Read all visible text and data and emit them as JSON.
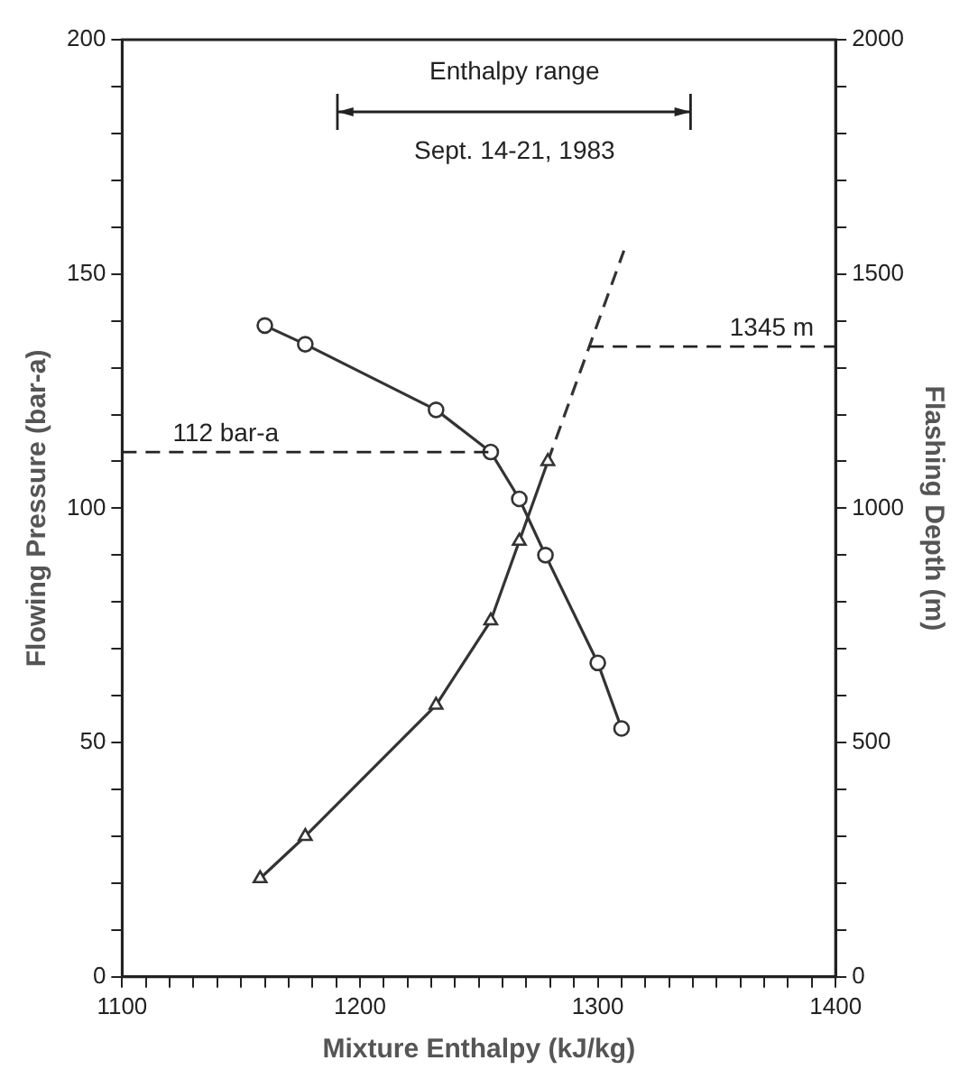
{
  "chart_data": {
    "type": "line",
    "xlabel": "Mixture Enthalpy (kJ/kg)",
    "ylabel": "Flowing Pressure (bar-a)",
    "y2label": "Flashing Depth (m)",
    "xlim": [
      1100,
      1400
    ],
    "xticks": [
      1100,
      {
        "value": 1110,
        "label": null
      },
      {
        "value": 1120,
        "label": null
      },
      {
        "value": 1130,
        "label": null
      },
      {
        "value": 1140,
        "label": null
      },
      {
        "value": 1150,
        "label": null
      },
      {
        "value": 1160,
        "label": null
      },
      {
        "value": 1170,
        "label": null
      },
      {
        "value": 1180,
        "label": null
      },
      {
        "value": 1190,
        "label": null
      },
      1200,
      {
        "value": 1210,
        "label": null
      },
      {
        "value": 1220,
        "label": null
      },
      {
        "value": 1230,
        "label": null
      },
      {
        "value": 1240,
        "label": null
      },
      {
        "value": 1250,
        "label": null
      },
      {
        "value": 1260,
        "label": null
      },
      {
        "value": 1270,
        "label": null
      },
      {
        "value": 1280,
        "label": null
      },
      {
        "value": 1290,
        "label": null
      },
      1300,
      {
        "value": 1310,
        "label": null
      },
      {
        "value": 1320,
        "label": null
      },
      {
        "value": 1330,
        "label": null
      },
      {
        "value": 1340,
        "label": null
      },
      {
        "value": 1350,
        "label": null
      },
      {
        "value": 1360,
        "label": null
      },
      {
        "value": 1370,
        "label": null
      },
      {
        "value": 1380,
        "label": null
      },
      {
        "value": 1390,
        "label": null
      },
      1400
    ],
    "ylim": [
      0,
      200
    ],
    "yticks": [
      0,
      {
        "value": 10,
        "label": null
      },
      {
        "value": 20,
        "label": null
      },
      {
        "value": 30,
        "label": null
      },
      {
        "value": 40,
        "label": null
      },
      50,
      {
        "value": 60,
        "label": null
      },
      {
        "value": 70,
        "label": null
      },
      {
        "value": 80,
        "label": null
      },
      {
        "value": 90,
        "label": null
      },
      100,
      {
        "value": 110,
        "label": null
      },
      {
        "value": 120,
        "label": null
      },
      {
        "value": 130,
        "label": null
      },
      {
        "value": 140,
        "label": null
      },
      150,
      {
        "value": 160,
        "label": null
      },
      {
        "value": 170,
        "label": null
      },
      {
        "value": 180,
        "label": null
      },
      {
        "value": 190,
        "label": null
      },
      200
    ],
    "y2lim": [
      0,
      2000
    ],
    "y2ticks": [
      0,
      {
        "value": 100,
        "label": null
      },
      {
        "value": 200,
        "label": null
      },
      {
        "value": 300,
        "label": null
      },
      {
        "value": 400,
        "label": null
      },
      500,
      {
        "value": 600,
        "label": null
      },
      {
        "value": 700,
        "label": null
      },
      {
        "value": 800,
        "label": null
      },
      {
        "value": 900,
        "label": null
      },
      1000,
      {
        "value": 1100,
        "label": null
      },
      {
        "value": 1200,
        "label": null
      },
      {
        "value": 1300,
        "label": null
      },
      {
        "value": 1400,
        "label": null
      },
      1500,
      {
        "value": 1600,
        "label": null
      },
      {
        "value": 1700,
        "label": null
      },
      {
        "value": 1800,
        "label": null
      },
      {
        "value": 1900,
        "label": null
      },
      2000
    ],
    "series": [
      {
        "axis": "y",
        "color": "#333333",
        "marker": "circle",
        "x": [
          1160,
          1177,
          1232,
          1255,
          1267,
          1278,
          1300,
          1310
        ],
        "values": [
          139,
          135,
          121,
          112,
          102,
          90,
          67,
          53
        ]
      },
      {
        "axis": "y2",
        "color": "#333333",
        "marker": "triangle",
        "x": [
          1158,
          1177,
          1232,
          1255,
          1267,
          1279
        ],
        "values": [
          210,
          300,
          580,
          760,
          930,
          1100
        ]
      },
      {
        "axis": "y2",
        "color": "#333333",
        "marker": "none",
        "line_style": "dashed",
        "x": [
          1279,
          1311
        ],
        "values": [
          1100,
          1550
        ]
      }
    ],
    "annotations": [
      "Enthalpy range",
      "Sept. 14-21, 1983"
    ],
    "ref_lines": [
      {
        "axis": "y",
        "value": 112,
        "label": "112 bar-a",
        "line_style": "dashed"
      },
      {
        "axis": "y2",
        "value": 1345,
        "label": "1345 m",
        "line_style": "dashed"
      }
    ],
    "grid": false,
    "legend": false
  }
}
